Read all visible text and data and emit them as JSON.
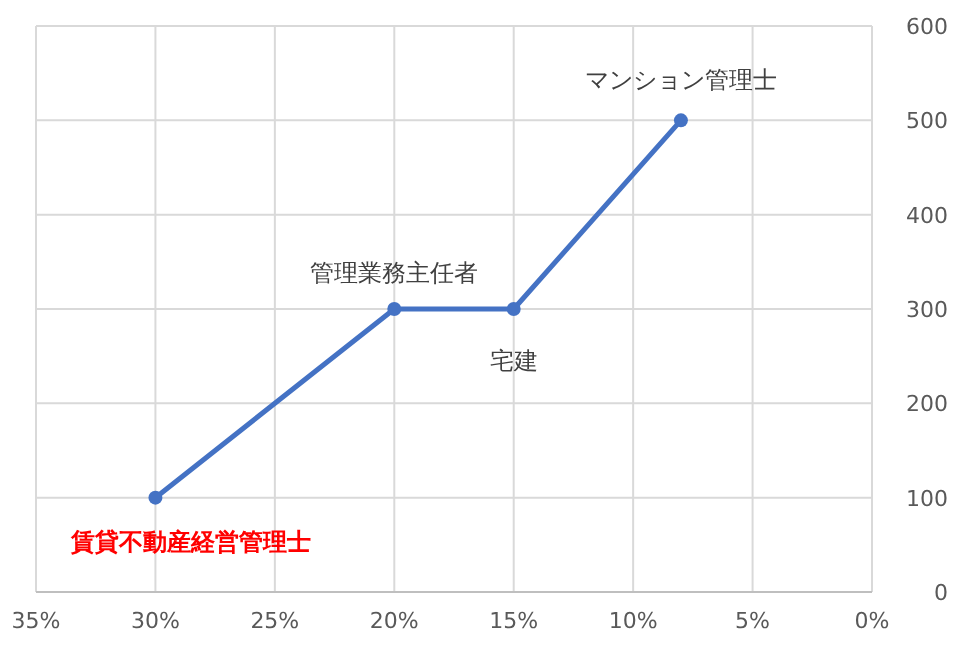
{
  "chart_data": {
    "type": "line",
    "x": [
      30,
      20,
      15,
      8
    ],
    "series": [
      {
        "color": "#4472c4",
        "values": [
          100,
          300,
          300,
          500
        ]
      }
    ],
    "xlim": [
      35,
      0
    ],
    "xticks": [
      {
        "value": 35,
        "label": "35%"
      },
      {
        "value": 30,
        "label": "30%"
      },
      {
        "value": 25,
        "label": "25%"
      },
      {
        "value": 20,
        "label": "20%"
      },
      {
        "value": 15,
        "label": "15%"
      },
      {
        "value": 10,
        "label": "10%"
      },
      {
        "value": 5,
        "label": "5%"
      },
      {
        "value": 0,
        "label": "0%"
      }
    ],
    "ylim": [
      0,
      600
    ],
    "yticks": [
      0,
      100,
      200,
      300,
      400,
      500,
      600
    ],
    "grid": true,
    "marker": "circle",
    "line_style": "solid",
    "annotations": [
      {
        "text": "賃貸不動産経営管理士",
        "x": 30,
        "y": 100
      },
      {
        "text": "管理業務主任者",
        "x": 20,
        "y": 300
      },
      {
        "text": "宅建",
        "x": 15,
        "y": 300
      },
      {
        "text": "マンション管理士",
        "x": 8,
        "y": 500
      }
    ]
  }
}
